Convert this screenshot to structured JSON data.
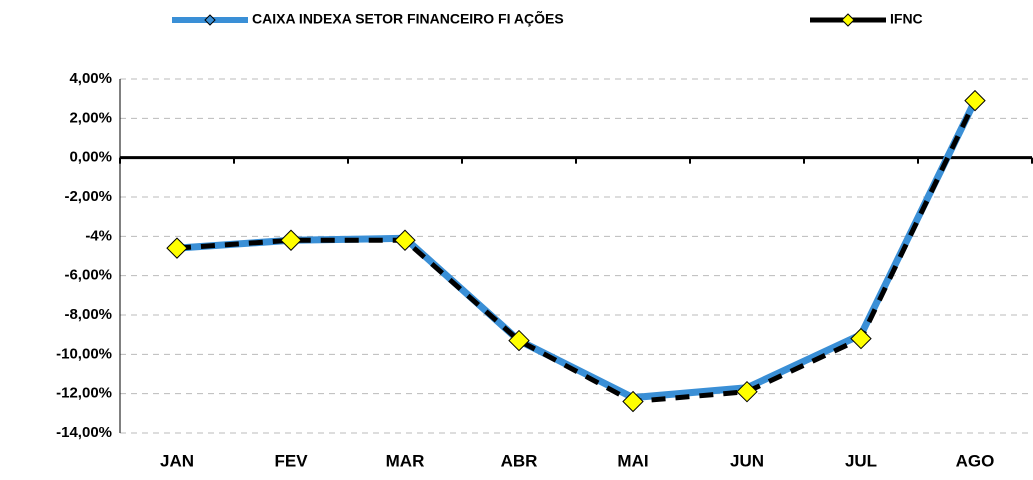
{
  "chart_data": {
    "type": "line",
    "categories": [
      "JAN",
      "FEV",
      "MAR",
      "ABR",
      "MAI",
      "JUN",
      "JUL",
      "AGO"
    ],
    "series": [
      {
        "name": "CAIXA INDEXA SETOR FINANCEIRO FI AÇÕES",
        "color": "#3a8fd6",
        "values": [
          -4.6,
          -4.2,
          -4.1,
          -9.3,
          -12.2,
          -11.7,
          -9.0,
          2.9
        ]
      },
      {
        "name": "IFNC",
        "color": "#000000",
        "marker_color": "#ffff00",
        "values": [
          -4.6,
          -4.2,
          -4.2,
          -9.3,
          -12.4,
          -11.9,
          -9.2,
          2.9
        ]
      }
    ],
    "ylim": [
      -14,
      4
    ],
    "yticks": [
      {
        "value": 4,
        "label": "4,00%"
      },
      {
        "value": 2,
        "label": "2,00%"
      },
      {
        "value": 0,
        "label": "0,00%"
      },
      {
        "value": -2,
        "label": "-2,00%"
      },
      {
        "value": -4,
        "label": "-4%"
      },
      {
        "value": -6,
        "label": "-6,00%"
      },
      {
        "value": -8,
        "label": "-8,00%"
      },
      {
        "value": -10,
        "label": "-10,00%"
      },
      {
        "value": -12,
        "label": "-12,00%"
      },
      {
        "value": -14,
        "label": "-14,00%"
      }
    ],
    "grid": true
  }
}
